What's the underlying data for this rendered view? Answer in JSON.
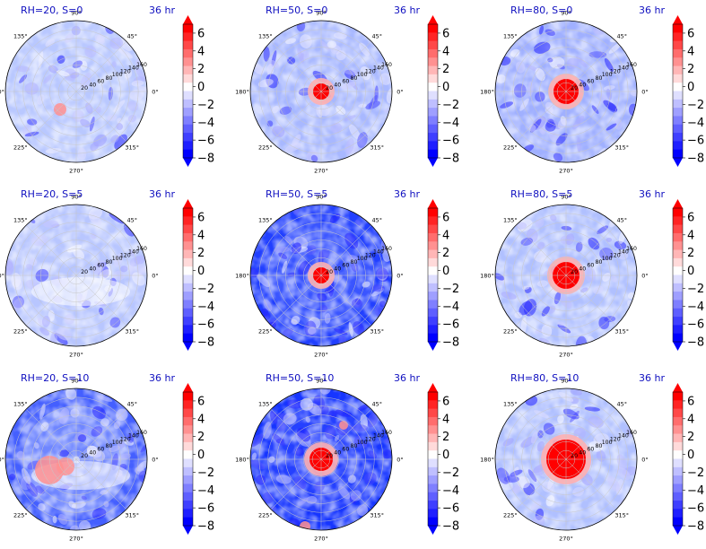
{
  "chart_data": {
    "type": "polar-contour-grid",
    "colorbar": {
      "ticks": [
        "6",
        "4",
        "2",
        "0",
        "−2",
        "−4",
        "−6",
        "−8"
      ],
      "levels": [
        -8,
        -7,
        -6,
        -5,
        -4,
        -3,
        -2,
        -1,
        0,
        1,
        2,
        3,
        4,
        5,
        6,
        7
      ],
      "extend": "both",
      "cmap": "bwr"
    },
    "angle_labels": [
      "90°",
      "45°",
      "0°",
      "315°",
      "270°",
      "225°",
      "180°",
      "135°"
    ],
    "radial_labels": [
      "20",
      "40",
      "60",
      "80",
      "100",
      "120",
      "140",
      "160"
    ],
    "time_label": "36 hr",
    "panels": [
      {
        "title": "RH=20, S=0"
      },
      {
        "title": "RH=50, S=0"
      },
      {
        "title": "RH=80, S=0"
      },
      {
        "title": "RH=20, S=5"
      },
      {
        "title": "RH=50, S=5"
      },
      {
        "title": "RH=80, S=5"
      },
      {
        "title": "RH=20, S=10"
      },
      {
        "title": "RH=50, S=10"
      },
      {
        "title": "RH=80, S=10"
      }
    ],
    "colors": {
      "title": "#1010c0",
      "bar_top": "#ff0000",
      "bar_mid": "#ffffff",
      "bar_bottom": "#0000ff"
    }
  }
}
